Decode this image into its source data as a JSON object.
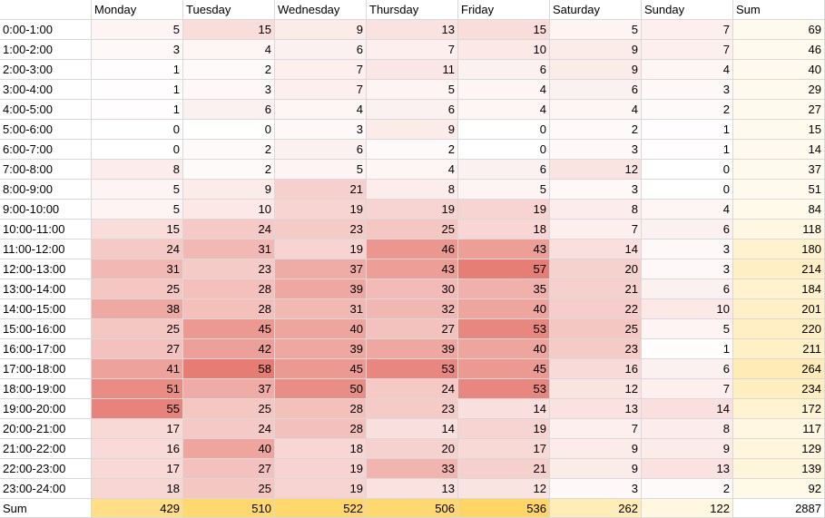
{
  "chart_data": {
    "type": "table",
    "columns": [
      "Monday",
      "Tuesday",
      "Wednesday",
      "Thursday",
      "Friday",
      "Saturday",
      "Sunday",
      "Sum"
    ],
    "rows": [
      {
        "label": "0:00-1:00",
        "values": [
          5,
          15,
          9,
          13,
          15,
          5,
          7
        ],
        "sum": 69
      },
      {
        "label": "1:00-2:00",
        "values": [
          3,
          4,
          6,
          7,
          10,
          9,
          7
        ],
        "sum": 46
      },
      {
        "label": "2:00-3:00",
        "values": [
          1,
          2,
          7,
          11,
          6,
          9,
          4
        ],
        "sum": 40
      },
      {
        "label": "3:00-4:00",
        "values": [
          1,
          3,
          7,
          5,
          4,
          6,
          3
        ],
        "sum": 29
      },
      {
        "label": "4:00-5:00",
        "values": [
          1,
          6,
          4,
          6,
          4,
          4,
          2
        ],
        "sum": 27
      },
      {
        "label": "5:00-6:00",
        "values": [
          0,
          0,
          3,
          9,
          0,
          2,
          1
        ],
        "sum": 15
      },
      {
        "label": "6:00-7:00",
        "values": [
          0,
          2,
          6,
          2,
          0,
          3,
          1
        ],
        "sum": 14
      },
      {
        "label": "7:00-8:00",
        "values": [
          8,
          2,
          5,
          4,
          6,
          12,
          0
        ],
        "sum": 37
      },
      {
        "label": "8:00-9:00",
        "values": [
          5,
          9,
          21,
          8,
          5,
          3,
          0
        ],
        "sum": 51
      },
      {
        "label": "9:00-10:00",
        "values": [
          5,
          10,
          19,
          19,
          19,
          8,
          4
        ],
        "sum": 84
      },
      {
        "label": "10:00-11:00",
        "values": [
          15,
          24,
          23,
          25,
          18,
          7,
          6
        ],
        "sum": 118
      },
      {
        "label": "11:00-12:00",
        "values": [
          24,
          31,
          19,
          46,
          43,
          14,
          3
        ],
        "sum": 180
      },
      {
        "label": "12:00-13:00",
        "values": [
          31,
          23,
          37,
          43,
          57,
          20,
          3
        ],
        "sum": 214
      },
      {
        "label": "13:00-14:00",
        "values": [
          25,
          28,
          39,
          30,
          35,
          21,
          6
        ],
        "sum": 184
      },
      {
        "label": "14:00-15:00",
        "values": [
          38,
          28,
          31,
          32,
          40,
          22,
          10
        ],
        "sum": 201
      },
      {
        "label": "15:00-16:00",
        "values": [
          25,
          45,
          40,
          27,
          53,
          25,
          5
        ],
        "sum": 220
      },
      {
        "label": "16:00-17:00",
        "values": [
          27,
          42,
          39,
          39,
          40,
          23,
          1
        ],
        "sum": 211
      },
      {
        "label": "17:00-18:00",
        "values": [
          41,
          58,
          45,
          53,
          45,
          16,
          6
        ],
        "sum": 264
      },
      {
        "label": "18:00-19:00",
        "values": [
          51,
          37,
          50,
          24,
          53,
          12,
          7
        ],
        "sum": 234
      },
      {
        "label": "19:00-20:00",
        "values": [
          55,
          25,
          28,
          23,
          14,
          13,
          14
        ],
        "sum": 172
      },
      {
        "label": "20:00-21:00",
        "values": [
          17,
          24,
          28,
          14,
          19,
          7,
          8
        ],
        "sum": 117
      },
      {
        "label": "21:00-22:00",
        "values": [
          16,
          40,
          18,
          20,
          17,
          9,
          9
        ],
        "sum": 129
      },
      {
        "label": "22:00-23:00",
        "values": [
          17,
          27,
          19,
          33,
          21,
          9,
          13
        ],
        "sum": 139
      },
      {
        "label": "23:00-24:00",
        "values": [
          18,
          25,
          19,
          13,
          12,
          3,
          2
        ],
        "sum": 92
      }
    ],
    "sum_row": {
      "label": "Sum",
      "values": [
        429,
        510,
        522,
        506,
        536,
        262,
        122
      ],
      "total": 2887
    },
    "colors": {
      "heat_low": "#ffffff",
      "heat_high": "#e67c73",
      "sum_low": "#ffffff",
      "sum_high": "#ffd666",
      "grid_line": "#d9d9d9"
    }
  }
}
